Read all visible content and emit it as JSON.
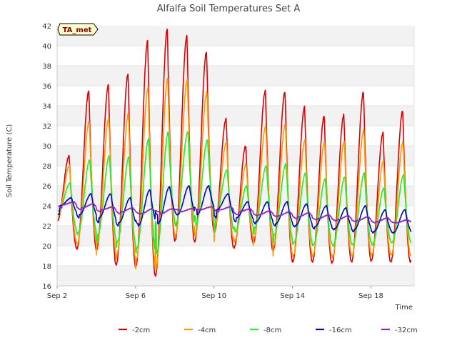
{
  "chart_data": {
    "type": "line",
    "title": "Alfalfa Soil Temperatures Set A",
    "xlabel": "Time",
    "ylabel": "Soil Temperature (C)",
    "site_badge": "TA_met",
    "xlim": [
      0,
      18.2
    ],
    "ylim": [
      16,
      42
    ],
    "y_ticks": [
      16,
      18,
      20,
      22,
      24,
      26,
      28,
      30,
      32,
      34,
      36,
      38,
      40,
      42
    ],
    "x_ticks": [
      {
        "day": 0,
        "label": "Sep 2"
      },
      {
        "day": 4,
        "label": "Sep 6"
      },
      {
        "day": 8,
        "label": "Sep 10"
      },
      {
        "day": 12,
        "label": "Sep 14"
      },
      {
        "day": 16,
        "label": "Sep 18"
      }
    ],
    "x_unit": "days since Sep 2",
    "grid": true,
    "legend_position": "bottom",
    "series": [
      {
        "name": "-2cm",
        "color": "#dd0000",
        "peaks": [
          29.0,
          35.5,
          36.1,
          37.2,
          40.5,
          41.7,
          41.0,
          39.4,
          32.7,
          30.0,
          35.5,
          35.4,
          33.9,
          33.0,
          33.1,
          35.4,
          31.3,
          33.5
        ],
        "mins": [
          22.5,
          19.7,
          19.6,
          18.1,
          17.9,
          17.0,
          20.5,
          20.4,
          21.4,
          19.8,
          20.3,
          19.5,
          18.4,
          18.4,
          18.3,
          18.4,
          18.5,
          18.4
        ]
      },
      {
        "name": "-4cm",
        "color": "#ff9900",
        "peaks": [
          28.0,
          32.5,
          32.8,
          33.2,
          35.8,
          36.8,
          36.6,
          35.4,
          30.4,
          28.2,
          32.0,
          32.1,
          30.6,
          30.4,
          30.4,
          31.6,
          28.5,
          30.4
        ],
        "mins": [
          22.9,
          20.2,
          20.2,
          19.1,
          18.6,
          17.7,
          21.0,
          20.9,
          21.9,
          20.4,
          20.8,
          20.0,
          19.0,
          19.0,
          18.9,
          19.0,
          19.1,
          19.1
        ]
      },
      {
        "name": "-8cm",
        "color": "#22ee22",
        "peaks": [
          26.3,
          28.6,
          29.0,
          28.9,
          30.7,
          31.4,
          31.4,
          30.6,
          27.6,
          26.0,
          28.0,
          28.2,
          27.3,
          26.7,
          26.9,
          27.3,
          25.8,
          27.1
        ],
        "mins": [
          23.5,
          21.3,
          21.1,
          20.4,
          19.8,
          19.2,
          22.3,
          22.0,
          22.9,
          21.4,
          21.8,
          21.1,
          20.3,
          20.1,
          20.0,
          20.1,
          20.1,
          20.3
        ]
      },
      {
        "name": "-16cm",
        "color": "#0000cc",
        "peaks": [
          24.8,
          25.2,
          25.2,
          24.8,
          25.6,
          25.9,
          26.0,
          26.0,
          25.2,
          24.4,
          24.4,
          24.4,
          24.2,
          24.0,
          23.8,
          24.0,
          23.6,
          23.6
        ],
        "mins": [
          24.0,
          23.1,
          22.8,
          22.3,
          22.0,
          22.2,
          23.1,
          23.1,
          23.6,
          22.8,
          22.4,
          22.2,
          22.0,
          21.9,
          21.7,
          21.6,
          21.4,
          21.3
        ]
      },
      {
        "name": "-32cm",
        "color": "#9922cc",
        "peaks": [
          24.4,
          24.2,
          23.9,
          23.8,
          23.7,
          23.7,
          23.7,
          23.9,
          23.9,
          23.7,
          23.5,
          23.4,
          23.3,
          23.1,
          23.0,
          22.9,
          22.8,
          22.6
        ],
        "mins": [
          24.1,
          23.8,
          23.6,
          23.4,
          23.2,
          23.2,
          23.4,
          23.6,
          23.6,
          23.4,
          23.1,
          23.0,
          22.9,
          22.7,
          22.6,
          22.5,
          22.4,
          22.3
        ]
      }
    ]
  }
}
